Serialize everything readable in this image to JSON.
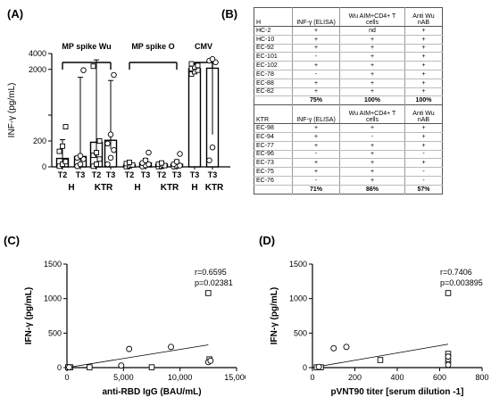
{
  "panels": {
    "a": "(A)",
    "b": "(B)",
    "c": "(C)",
    "d": "(D)"
  },
  "chart_data": [
    {
      "type": "bar",
      "panel": "(A)",
      "ylabel": "INF-γ (pg/mL)",
      "y_scale": "segmented",
      "y_ticks": [
        "0",
        "200",
        "400",
        "2000",
        "4000"
      ],
      "groups": [
        {
          "label": "MP spike Wu",
          "bars": [
            {
              "tick": "T2",
              "value": 65,
              "error": [
                0,
                210
              ],
              "points": [
                5,
                20,
                40,
                120,
                160,
                310
              ]
            },
            {
              "tick": "T3",
              "value": 80,
              "error": [
                20,
                1000
              ],
              "points": [
                5,
                20,
                60,
                70,
                85,
                1900
              ]
            },
            {
              "tick": "T2",
              "value": 190,
              "error": [
                70,
                3200
              ],
              "points": [
                5,
                20,
                60,
                90,
                110,
                200,
                2400
              ]
            },
            {
              "tick": "T3",
              "value": 205,
              "error": [
                140,
                600
              ],
              "points": [
                20,
                70,
                130,
                180,
                250,
                1300
              ]
            }
          ]
        },
        {
          "label": "MP spike O",
          "bars": [
            {
              "tick": "T2",
              "value": 15,
              "error": [
                5,
                40
              ],
              "points": [
                2,
                8,
                15,
                25,
                35
              ]
            },
            {
              "tick": "T3",
              "value": 30,
              "error": [
                10,
                65
              ],
              "points": [
                3,
                10,
                20,
                30,
                50,
                110
              ]
            },
            {
              "tick": "T2",
              "value": 20,
              "error": [
                5,
                40
              ],
              "points": [
                2,
                5,
                10,
                20,
                30
              ]
            },
            {
              "tick": "T3",
              "value": 20,
              "error": [
                5,
                55
              ],
              "points": [
                2,
                5,
                10,
                20,
                40,
                100
              ]
            }
          ]
        },
        {
          "label": "CMV",
          "bars": [
            {
              "tick": "T3",
              "value": 2100,
              "error": [
                1700,
                2500
              ],
              "points": [
                1400,
                1700,
                1900,
                2100,
                2300,
                2500,
                2700
              ]
            },
            {
              "tick": "T3",
              "value": 2150,
              "error": [
                250,
                3350
              ],
              "points": [
                50,
                150,
                2900,
                3100,
                3300
              ]
            }
          ]
        }
      ],
      "group_labels": [
        {
          "text": "H",
          "under": "MP spike Wu"
        },
        {
          "text": "KTR",
          "under": "MP spike Wu"
        },
        {
          "text": "H",
          "under": "MP spike O"
        },
        {
          "text": "KTR",
          "under": "MP spike O"
        },
        {
          "text": "H",
          "under": "CMV"
        },
        {
          "text": "KTR",
          "under": "CMV"
        }
      ]
    },
    {
      "type": "table",
      "panel": "(B)",
      "sections": [
        {
          "header": [
            "H",
            "INF-γ (ELISA)",
            "Wu AIM+CD4+ T cells",
            "Anti Wu nAB"
          ],
          "rows": [
            [
              "HC-2",
              "+",
              "nd",
              "+"
            ],
            [
              "HC-10",
              "+",
              "+",
              "+"
            ],
            [
              "EC-92",
              "+",
              "+",
              "+"
            ],
            [
              "EC-101",
              "-",
              "+",
              "+"
            ],
            [
              "EC-102",
              "+",
              "+",
              "+"
            ],
            [
              "EC-78",
              "-",
              "+",
              "+"
            ],
            [
              "EC-88",
              "+",
              "+",
              "+"
            ],
            [
              "EC-82",
              "+",
              "+",
              "+"
            ]
          ],
          "totals": [
            "",
            "75%",
            "100%",
            "100%"
          ]
        },
        {
          "header": [
            "KTR",
            "INF-γ (ELISA)",
            "Wu AIM+CD4+ T cells",
            "Anti Wu nAB"
          ],
          "rows": [
            [
              "EC-98",
              "+",
              "+",
              "+"
            ],
            [
              "EC-94",
              "+",
              "-",
              "+"
            ],
            [
              "EC-77",
              "+",
              "+",
              "+"
            ],
            [
              "EC-96",
              "-",
              "+",
              "-"
            ],
            [
              "EC-73",
              "+",
              "+",
              "+"
            ],
            [
              "EC-75",
              "+",
              "+",
              "-"
            ],
            [
              "EC-76",
              "-",
              "+",
              "-"
            ]
          ],
          "totals": [
            "",
            "71%",
            "86%",
            "57%"
          ]
        }
      ]
    },
    {
      "type": "scatter",
      "panel": "(C)",
      "xlabel": "anti-RBD IgG (BAU/mL)",
      "ylabel": "IFN-γ (pg/mL)",
      "xlim": [
        0,
        15000
      ],
      "ylim": [
        0,
        1500
      ],
      "x_ticks": [
        "0",
        "5,000",
        "10,000",
        "15,000"
      ],
      "y_ticks": [
        "0",
        "500",
        "1000",
        "1500"
      ],
      "annotations": [
        "r=0.6595",
        "p=0.02381"
      ],
      "fit": {
        "x1": 0,
        "y1": 0,
        "x2": 12500,
        "y2": 330
      },
      "squares": [
        [
          100,
          5
        ],
        [
          300,
          5
        ],
        [
          2000,
          5
        ],
        [
          7500,
          5
        ],
        [
          12500,
          1080
        ],
        [
          12600,
          120
        ]
      ],
      "circles": [
        [
          200,
          5
        ],
        [
          5500,
          270
        ],
        [
          9200,
          300
        ],
        [
          4800,
          30
        ],
        [
          12500,
          80
        ],
        [
          12700,
          100
        ]
      ]
    },
    {
      "type": "scatter",
      "panel": "(D)",
      "xlabel": "pVNT90 titer [serum dilution -1]",
      "ylabel": "IFN-γ (pg/mL)",
      "xlim": [
        0,
        800
      ],
      "ylim": [
        0,
        1500
      ],
      "x_ticks": [
        "0",
        "200",
        "400",
        "600",
        "800"
      ],
      "y_ticks": [
        "0",
        "500",
        "1000",
        "1500"
      ],
      "annotations": [
        "r=0.7406",
        "p=0.003895"
      ],
      "fit": {
        "x1": 0,
        "y1": 0,
        "x2": 640,
        "y2": 340
      },
      "squares": [
        [
          20,
          5
        ],
        [
          40,
          5
        ],
        [
          320,
          110
        ],
        [
          640,
          1080
        ],
        [
          640,
          200
        ]
      ],
      "circles": [
        [
          30,
          10
        ],
        [
          100,
          280
        ],
        [
          160,
          300
        ],
        [
          640,
          80
        ],
        [
          640,
          120
        ],
        [
          640,
          160
        ],
        [
          640,
          40
        ]
      ]
    }
  ]
}
